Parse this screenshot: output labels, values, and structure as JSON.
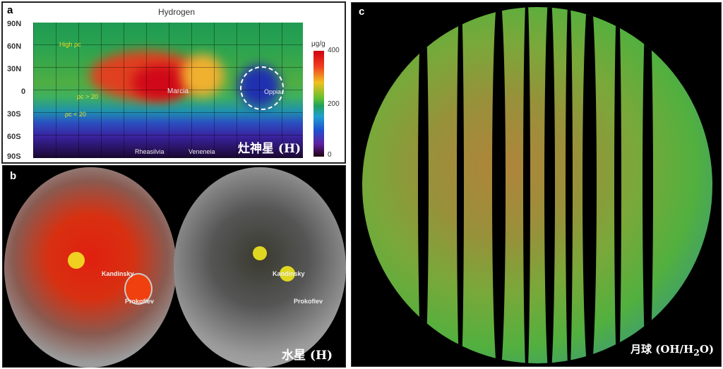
{
  "panel_a": {
    "label": "a",
    "title": "Hydrogen",
    "lat_ticks": [
      "90N",
      "60N",
      "30N",
      "0",
      "30S",
      "60S",
      "90S"
    ],
    "annotations": {
      "high_pc": "High ρc",
      "pc_gt": "ρc > 20",
      "pc_lt": "ρc < 20",
      "marcia": "Marcia",
      "oppia": "Oppia",
      "rheasilvia": "Rheasilvia",
      "veneneia": "Veneneia"
    },
    "colorbar": {
      "unit": "μg/g",
      "ticks": [
        "400",
        "200",
        "0"
      ]
    },
    "caption": "灶神星 (H)"
  },
  "panel_b": {
    "label": "b",
    "craters": {
      "kandinsky": "Kandinsky",
      "prokofiev": "Prokofiev"
    },
    "caption": "水星 (H)"
  },
  "panel_c": {
    "label": "c",
    "caption_pre": "月球 (OH/H",
    "caption_sub": "2",
    "caption_post": "O)"
  }
}
